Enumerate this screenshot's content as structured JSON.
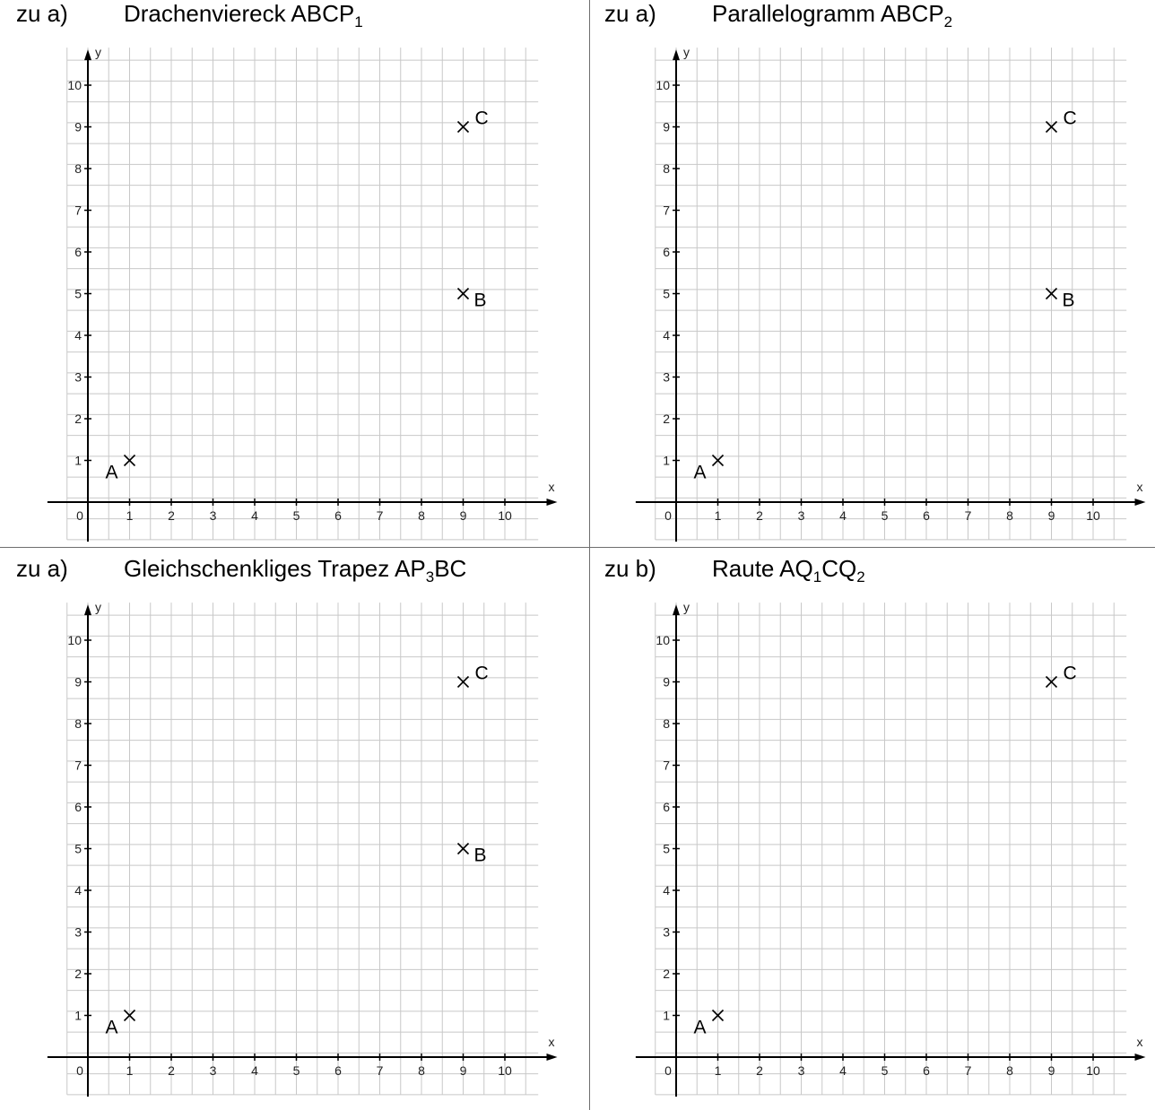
{
  "panels": [
    {
      "id": "drachenviereck",
      "part": "zu a)",
      "title_main": "Drachenviereck  ABCP",
      "title_sub": "1",
      "title_after": "",
      "points": [
        {
          "label": "A",
          "x": 1,
          "y": 1
        },
        {
          "label": "B",
          "x": 9,
          "y": 5
        },
        {
          "label": "C",
          "x": 9,
          "y": 9
        }
      ]
    },
    {
      "id": "parallelogramm",
      "part": "zu a)",
      "title_main": "Parallelogramm  ABCP",
      "title_sub": "2",
      "title_after": "",
      "points": [
        {
          "label": "A",
          "x": 1,
          "y": 1
        },
        {
          "label": "B",
          "x": 9,
          "y": 5
        },
        {
          "label": "C",
          "x": 9,
          "y": 9
        }
      ]
    },
    {
      "id": "trapez",
      "part": "zu a)",
      "title_main": "Gleichschenkliges Trapez   AP",
      "title_sub": "3",
      "title_after": "BC",
      "points": [
        {
          "label": "A",
          "x": 1,
          "y": 1
        },
        {
          "label": "B",
          "x": 9,
          "y": 5
        },
        {
          "label": "C",
          "x": 9,
          "y": 9
        }
      ]
    },
    {
      "id": "raute",
      "part": "zu b)",
      "title_main": "Raute  AQ",
      "title_sub": "1",
      "title_after": "CQ",
      "title_sub2": "2",
      "points": [
        {
          "label": "A",
          "x": 1,
          "y": 1
        },
        {
          "label": "C",
          "x": 9,
          "y": 9
        }
      ]
    }
  ],
  "axes": {
    "x_name": "x",
    "y_name": "y",
    "x_ticks": [
      "0",
      "1",
      "2",
      "3",
      "4",
      "5",
      "6",
      "7",
      "8",
      "9",
      "10"
    ],
    "y_ticks": [
      "1",
      "2",
      "3",
      "4",
      "5",
      "6",
      "7",
      "8",
      "9",
      "10"
    ],
    "x_range": [
      -1,
      11
    ],
    "y_range": [
      -1,
      11
    ],
    "grid_step": 0.5
  }
}
